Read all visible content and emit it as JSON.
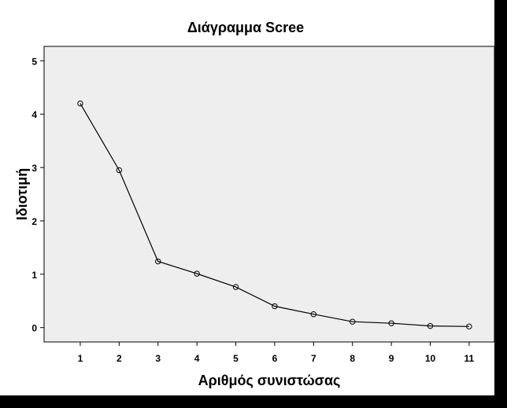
{
  "chart_data": {
    "type": "line",
    "title": "Διάγραμμα Scree",
    "xlabel": "Αριθμός συνιστώσας",
    "ylabel": "Ιδιοτιμή",
    "x": [
      1,
      2,
      3,
      4,
      5,
      6,
      7,
      8,
      9,
      10,
      11
    ],
    "values": [
      4.2,
      2.95,
      1.24,
      1.01,
      0.76,
      0.4,
      0.25,
      0.11,
      0.08,
      0.03,
      0.02
    ],
    "xlim": [
      0.07,
      11.65
    ],
    "ylim": [
      -0.27,
      5.27
    ],
    "x_ticks": [
      "1",
      "2",
      "3",
      "4",
      "5",
      "6",
      "7",
      "8",
      "9",
      "10",
      "11"
    ],
    "y_ticks": [
      "0",
      "1",
      "2",
      "3",
      "4",
      "5"
    ],
    "grid": false,
    "marker": "open-circle",
    "colors": {
      "plot_background": "#eeeeee",
      "line": "#000000",
      "frame": "#000000"
    }
  }
}
